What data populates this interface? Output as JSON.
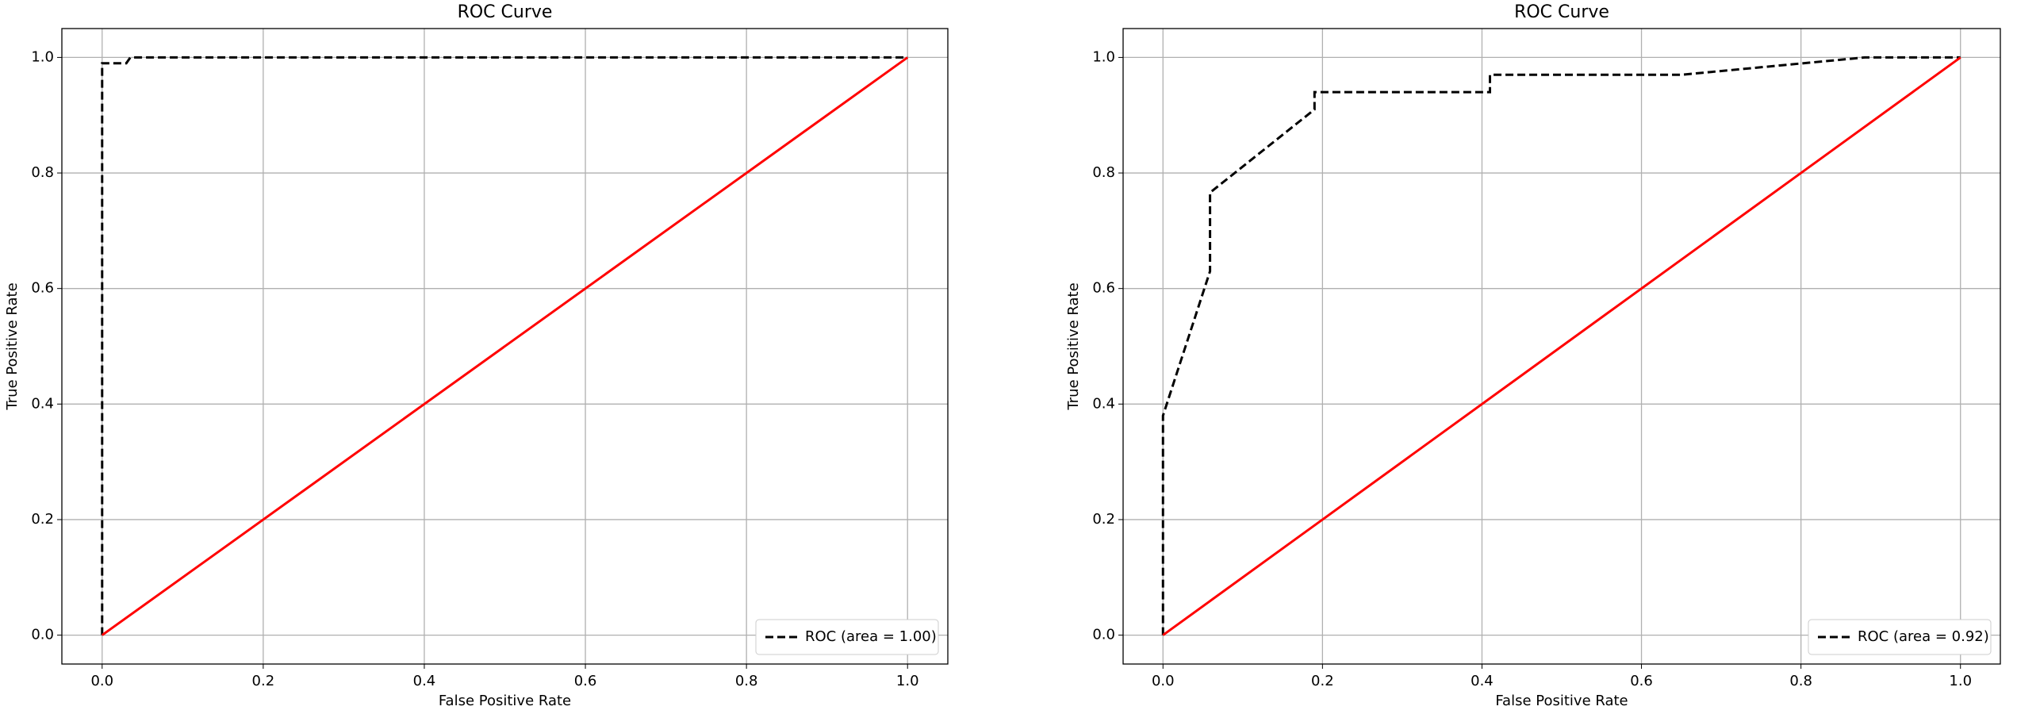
{
  "chart_data": [
    {
      "type": "line",
      "title": "ROC Curve",
      "x_label": "False Positive Rate",
      "y_label": "True Positive Rate",
      "xlim": [
        -0.05,
        1.05
      ],
      "ylim": [
        -0.05,
        1.05
      ],
      "xticks": [
        {
          "value": 0,
          "label": "0.0"
        },
        0.2,
        0.4,
        0.6,
        0.8,
        {
          "value": 1,
          "label": "1.0"
        }
      ],
      "yticks": [
        {
          "value": 0,
          "label": "0.0"
        },
        0.2,
        0.4,
        0.6,
        0.8,
        {
          "value": 1,
          "label": "1.0"
        }
      ],
      "grid": true,
      "legend": "lower right",
      "series": [
        {
          "name": "ROC (area = 1.00)",
          "color": "#000000",
          "linestyle": "dashed",
          "x": [
            0,
            0,
            0.03,
            0.035,
            1
          ],
          "values": [
            0,
            0.99,
            0.99,
            1,
            1
          ]
        },
        {
          "color": "#ff0000",
          "linestyle": "solid",
          "x": [
            0,
            1
          ],
          "values": [
            0,
            1
          ]
        }
      ]
    },
    {
      "type": "line",
      "title": "ROC Curve",
      "x_label": "False Positive Rate",
      "y_label": "True Positive Rate",
      "xlim": [
        -0.05,
        1.05
      ],
      "ylim": [
        -0.05,
        1.05
      ],
      "xticks": [
        {
          "value": 0,
          "label": "0.0"
        },
        0.2,
        0.4,
        0.6,
        0.8,
        {
          "value": 1,
          "label": "1.0"
        }
      ],
      "yticks": [
        {
          "value": 0,
          "label": "0.0"
        },
        0.2,
        0.4,
        0.6,
        0.8,
        {
          "value": 1,
          "label": "1.0"
        }
      ],
      "grid": true,
      "legend": "lower right",
      "series": [
        {
          "name": "ROC (area = 0.92)",
          "color": "#000000",
          "linestyle": "dashed",
          "x": [
            0,
            0,
            0.059,
            0.059,
            0.19,
            0.19,
            0.41,
            0.41,
            0.65,
            0.88,
            1
          ],
          "values": [
            0,
            0.38,
            0.63,
            0.766,
            0.91,
            0.94,
            0.94,
            0.97,
            0.97,
            1,
            1
          ]
        },
        {
          "color": "#ff0000",
          "linestyle": "solid",
          "x": [
            0,
            1
          ],
          "values": [
            0,
            1
          ]
        }
      ]
    }
  ]
}
